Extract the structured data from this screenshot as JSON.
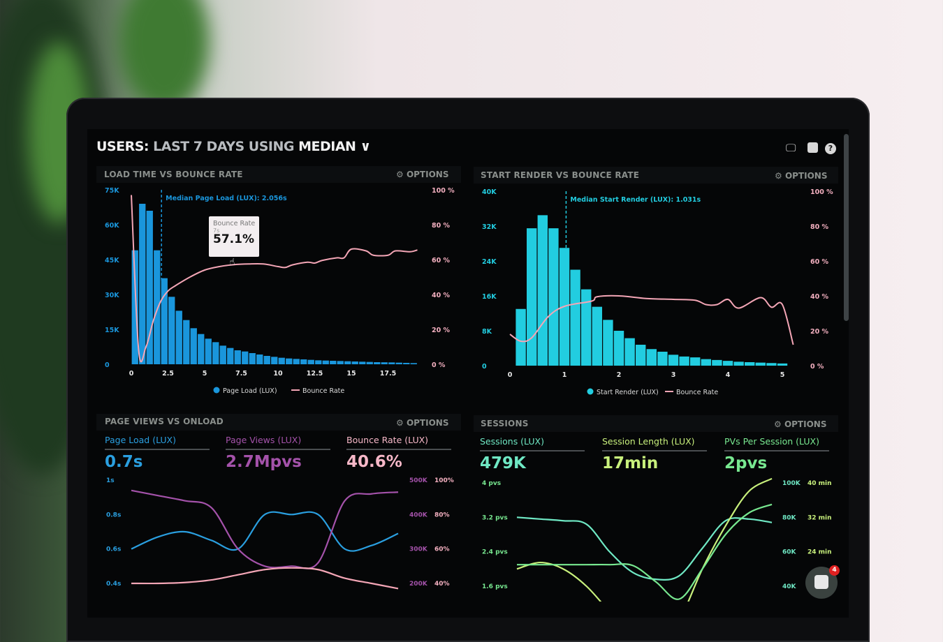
{
  "header": {
    "title_users": "USERS:",
    "title_range": "LAST 7 DAYS",
    "title_using": "USING",
    "title_median": "MEDIAN"
  },
  "icons": [
    "monitor-icon",
    "share-icon",
    "help-icon"
  ],
  "panels": [
    {
      "title": "LOAD TIME VS BOUNCE RATE",
      "options": "OPTIONS"
    },
    {
      "title": "START RENDER VS BOUNCE RATE",
      "options": "OPTIONS"
    },
    {
      "title": "PAGE VIEWS VS ONLOAD",
      "options": "OPTIONS"
    },
    {
      "title": "SESSIONS",
      "options": "OPTIONS"
    }
  ],
  "tooltip": {
    "label": "Bounce Rate",
    "x": "7s",
    "value": "57.1%"
  },
  "kpis_left": [
    {
      "label": "Page Load (LUX)",
      "value": "0.7s",
      "color": "#2a9fe0"
    },
    {
      "label": "Page Views (LUX)",
      "value": "2.7Mpvs",
      "color": "#a452aa"
    },
    {
      "label": "Bounce Rate (LUX)",
      "value": "40.6%",
      "color": "#f7b8c8"
    }
  ],
  "kpis_right": [
    {
      "label": "Sessions (LUX)",
      "value": "479K",
      "color": "#6fe8c4"
    },
    {
      "label": "Session Length (LUX)",
      "value": "17min",
      "color": "#c8f07c"
    },
    {
      "label": "PVs Per Session (LUX)",
      "value": "2pvs",
      "color": "#78e890"
    }
  ],
  "chat": {
    "badge": "4"
  },
  "chart_data": [
    {
      "type": "bar",
      "title": "LOAD TIME VS BOUNCE RATE",
      "annotation": "Median Page Load (LUX): 2.056s",
      "median": 2.056,
      "x_ticks": [
        "0",
        "2.5",
        "5",
        "7.5",
        "10",
        "12.5",
        "15",
        "17.5"
      ],
      "x_tick_values": [
        0,
        2.5,
        5,
        7.5,
        10,
        12.5,
        15,
        17.5
      ],
      "y_ticks": [
        "0",
        "15K",
        "30K",
        "45K",
        "60K",
        "75K"
      ],
      "ylim": [
        0,
        75
      ],
      "y2_ticks": [
        "0 %",
        "20 %",
        "40 %",
        "60 %",
        "80 %",
        "100 %"
      ],
      "y2lim": [
        0,
        100
      ],
      "bin_width": 0.5,
      "series": [
        {
          "name": "Page Load (LUX)",
          "type": "bar",
          "color": "#1a96dc",
          "unit": "K",
          "values": [
            49,
            69,
            66,
            49,
            37,
            29,
            23,
            19,
            15.5,
            13,
            11,
            9.5,
            8,
            7,
            6,
            5.5,
            4.8,
            4.2,
            3.6,
            3.2,
            2.8,
            2.5,
            2.3,
            2.1,
            1.9,
            1.7,
            1.6,
            1.5,
            1.4,
            1.3,
            1.2,
            1.1,
            1.0,
            0.9,
            0.85,
            0.8,
            0.7,
            0.6,
            0.5
          ]
        },
        {
          "name": "Bounce Rate",
          "type": "line",
          "color": "#f4a6b6",
          "axis": "y2",
          "points": [
            [
              0,
              97
            ],
            [
              0.5,
              8
            ],
            [
              1,
              10
            ],
            [
              1.5,
              25
            ],
            [
              2,
              36
            ],
            [
              2.5,
              42
            ],
            [
              3,
              45
            ],
            [
              4,
              50
            ],
            [
              5,
              54
            ],
            [
              6,
              56
            ],
            [
              7,
              57.1
            ],
            [
              8,
              57.5
            ],
            [
              9,
              57.5
            ],
            [
              10,
              56
            ],
            [
              10.5,
              55.5
            ],
            [
              11,
              57
            ],
            [
              12,
              58.5
            ],
            [
              12.5,
              58
            ],
            [
              13,
              59.5
            ],
            [
              14,
              61
            ],
            [
              14.5,
              61
            ],
            [
              15,
              66
            ],
            [
              16,
              65
            ],
            [
              16.5,
              62.5
            ],
            [
              17.5,
              62.5
            ],
            [
              18,
              65
            ],
            [
              19,
              64.5
            ],
            [
              19.5,
              65.5
            ]
          ]
        }
      ],
      "legend": "bottom"
    },
    {
      "type": "bar",
      "title": "START RENDER VS BOUNCE RATE",
      "annotation": "Median Start Render (LUX): 1.031s",
      "median": 1.031,
      "x_ticks": [
        "0",
        "1",
        "2",
        "3",
        "4",
        "5"
      ],
      "x_tick_values": [
        0,
        1,
        2,
        3,
        4,
        5
      ],
      "y_ticks": [
        "0",
        "8K",
        "16K",
        "24K",
        "32K",
        "40K"
      ],
      "ylim": [
        0,
        40
      ],
      "y2_ticks": [
        "0 %",
        "20 %",
        "40 %",
        "60 %",
        "80 %",
        "100 %"
      ],
      "y2lim": [
        0,
        100
      ],
      "bin_width": 0.2,
      "bin_start": 0.1,
      "series": [
        {
          "name": "Start Render (LUX)",
          "type": "bar",
          "color": "#22cde0",
          "unit": "K",
          "values": [
            13,
            31.5,
            34.5,
            31.5,
            27,
            22,
            17.5,
            13.5,
            10.5,
            8,
            6.3,
            4.8,
            3.8,
            3.2,
            2.5,
            2.1,
            1.9,
            1.5,
            1.3,
            1.1,
            0.9,
            0.8,
            0.7,
            0.6,
            0.5
          ]
        },
        {
          "name": "Bounce Rate",
          "type": "line",
          "color": "#f4a6b6",
          "axis": "y2",
          "points": [
            [
              0,
              18
            ],
            [
              0.2,
              14
            ],
            [
              0.4,
              16
            ],
            [
              0.7,
              28
            ],
            [
              1,
              34
            ],
            [
              1.5,
              37
            ],
            [
              1.6,
              39.5
            ],
            [
              2,
              40
            ],
            [
              2.5,
              38.5
            ],
            [
              3,
              38
            ],
            [
              3.4,
              37.5
            ],
            [
              3.6,
              35
            ],
            [
              3.8,
              35
            ],
            [
              4,
              38
            ],
            [
              4.2,
              33
            ],
            [
              4.6,
              39
            ],
            [
              4.8,
              33.5
            ],
            [
              5,
              35
            ],
            [
              5.2,
              12
            ]
          ]
        }
      ],
      "legend": "bottom"
    },
    {
      "type": "line",
      "title": "PAGE VIEWS VS ONLOAD",
      "y_ticks": [
        "0.4s",
        "0.6s",
        "0.8s",
        "1s"
      ],
      "ylim": [
        0.4,
        1.0
      ],
      "y2_ticks": [
        "200K",
        "300K",
        "400K",
        "500K"
      ],
      "y2lim": [
        200,
        500
      ],
      "y3_ticks": [
        "40%",
        "60%",
        "80%",
        "100%"
      ],
      "y3lim": [
        40,
        100
      ],
      "series": [
        {
          "name": "Page Load (LUX)",
          "color": "#2a9fe0",
          "axis": "y",
          "values": [
            0.6,
            0.67,
            0.7,
            0.65,
            0.6,
            0.8,
            0.8,
            0.8,
            0.6,
            0.62,
            0.69
          ]
        },
        {
          "name": "Page Views (LUX)",
          "color": "#a452aa",
          "axis": "y2",
          "values": [
            470,
            455,
            440,
            420,
            300,
            250,
            250,
            260,
            440,
            460,
            465
          ]
        },
        {
          "name": "Bounce Rate (LUX)",
          "color": "#f4a6b6",
          "axis": "y3",
          "values": [
            40,
            40,
            40.5,
            42,
            45,
            48,
            49,
            48,
            43,
            40,
            37
          ]
        }
      ]
    },
    {
      "type": "line",
      "title": "SESSIONS",
      "y_ticks": [
        "1.6 pvs",
        "2.4 pvs",
        "3.2 pvs",
        "4 pvs"
      ],
      "ylim": [
        1.6,
        4.0
      ],
      "y2_ticks": [
        "40K",
        "60K",
        "80K",
        "100K"
      ],
      "y2lim": [
        40,
        100
      ],
      "y3_ticks": [
        "24 min",
        "32 min",
        "40 min"
      ],
      "y3_tick_values": [
        24,
        32,
        40
      ],
      "y3lim": [
        16,
        40
      ],
      "series": [
        {
          "name": "Sessions (LUX)",
          "color": "#6fe8c4",
          "axis": "y2",
          "values": [
            80,
            79,
            78,
            76,
            60,
            48,
            44,
            46,
            62,
            78,
            79,
            77
          ]
        },
        {
          "name": "Session Length (LUX)",
          "color": "#c8f07c",
          "axis": "y3",
          "values": [
            20,
            21.5,
            20,
            16,
            10,
            4,
            2,
            8,
            20,
            30,
            38,
            41
          ]
        },
        {
          "name": "PVs Per Session (LUX)",
          "color": "#78e890",
          "axis": "y",
          "values": [
            2.1,
            2.1,
            2.1,
            2.1,
            2.1,
            2.08,
            1.7,
            1.3,
            2.0,
            2.8,
            3.3,
            3.5
          ]
        }
      ]
    }
  ]
}
